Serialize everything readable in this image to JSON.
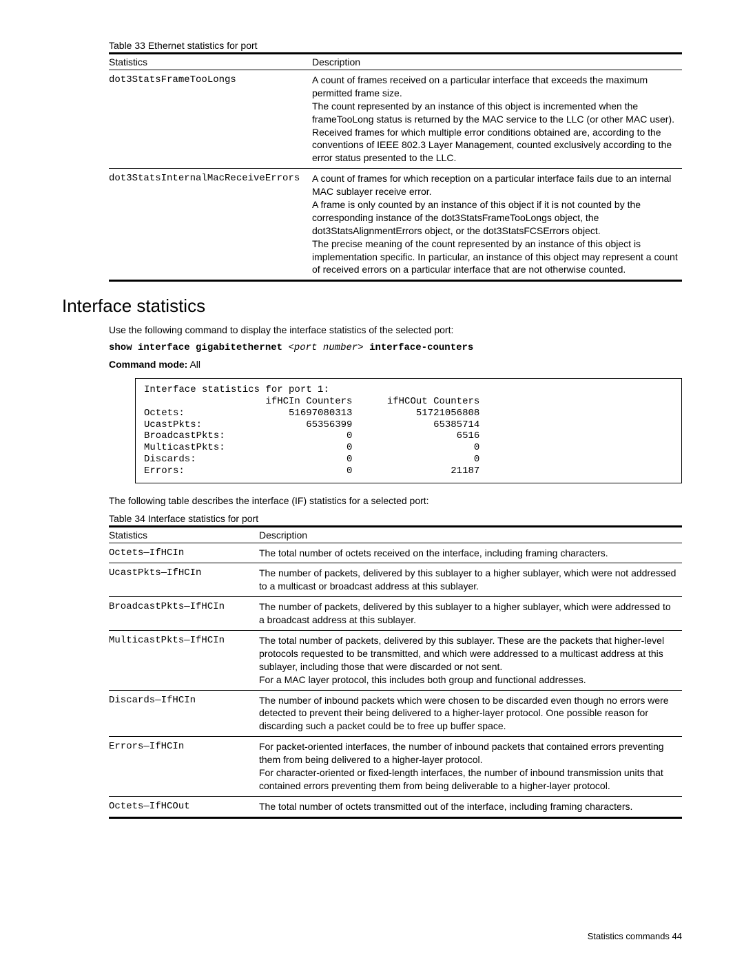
{
  "table33": {
    "caption": "Table 33  Ethernet statistics for port",
    "headers": {
      "stat": "Statistics",
      "desc": "Description"
    },
    "rows": [
      {
        "stat": "dot3StatsFrameTooLongs",
        "desc": "A count of frames received on a particular interface that exceeds the maximum permitted frame size.\nThe count represented by an instance of this object is incremented when the frameTooLong status is returned by the MAC service to the LLC (or other MAC user).\nReceived frames for which multiple error conditions obtained are, according to the conventions of IEEE 802.3 Layer Management, counted exclusively according to the error status presented to the LLC."
      },
      {
        "stat": "dot3StatsInternalMacReceiveErrors",
        "desc": "A count of frames for which reception on a particular interface fails due to an internal MAC sublayer receive error.\nA frame is only counted by an instance of this object if it is not counted by the corresponding instance of the dot3StatsFrameTooLongs object, the dot3StatsAlignmentErrors object, or the dot3StatsFCSErrors object.\nThe precise meaning of the count represented by an instance of this object is implementation specific. In particular, an instance of this object may represent a count of received errors on a particular interface that are not otherwise counted."
      }
    ]
  },
  "section": {
    "title": "Interface statistics",
    "intro": "Use the following command to display the interface statistics of the selected port:",
    "cmd_pre": "show interface gigabitethernet ",
    "cmd_arg": "<port number>",
    "cmd_post": " interface-counters",
    "mode_label": "Command mode:",
    "mode_val": " All",
    "terminal": "Interface statistics for port 1:\n                     ifHCIn Counters      ifHCOut Counters\nOctets:                  51697080313           51721056808\nUcastPkts:                  65356399              65385714\nBroadcastPkts:                     0                  6516\nMulticastPkts:                     0                     0\nDiscards:                          0                     0\nErrors:                            0                 21187",
    "outro": "The following table describes the interface (IF) statistics for a selected port:"
  },
  "table34": {
    "caption": "Table 34  Interface statistics for port",
    "headers": {
      "stat": "Statistics",
      "desc": "Description"
    },
    "rows": [
      {
        "stat": "Octets—IfHCIn",
        "desc": "The total number of octets received on the interface, including framing characters."
      },
      {
        "stat": "UcastPkts—IfHCIn",
        "desc": "The number of packets, delivered by this sublayer to a higher sublayer, which were not addressed to a multicast or broadcast address at this sublayer."
      },
      {
        "stat": "BroadcastPkts—IfHCIn",
        "desc": "The number of packets, delivered by this sublayer to a higher sublayer, which were addressed to a broadcast address at this sublayer."
      },
      {
        "stat": "MulticastPkts—IfHCIn",
        "desc": "The total number of packets, delivered by this sublayer. These are the packets that higher-level protocols requested to be transmitted, and which were addressed to a multicast address at this sublayer, including those that were discarded or not sent.\nFor a MAC layer protocol, this includes both group and functional addresses."
      },
      {
        "stat": "Discards—IfHCIn",
        "desc": "The number of inbound packets which were chosen to be discarded even though no errors were detected to prevent their being delivered to a higher-layer protocol. One possible reason for discarding such a packet could be to free up buffer space."
      },
      {
        "stat": "Errors—IfHCIn",
        "desc": "For packet-oriented interfaces, the number of inbound packets that contained errors preventing them from being delivered to a higher-layer protocol.\nFor character-oriented or fixed-length interfaces, the number of inbound transmission units that contained errors preventing them from being deliverable to a higher-layer protocol."
      },
      {
        "stat": "Octets—IfHCOut",
        "desc": "The total number of octets transmitted out of the interface, including framing characters."
      }
    ]
  },
  "footer": {
    "text": "Statistics commands   44"
  }
}
